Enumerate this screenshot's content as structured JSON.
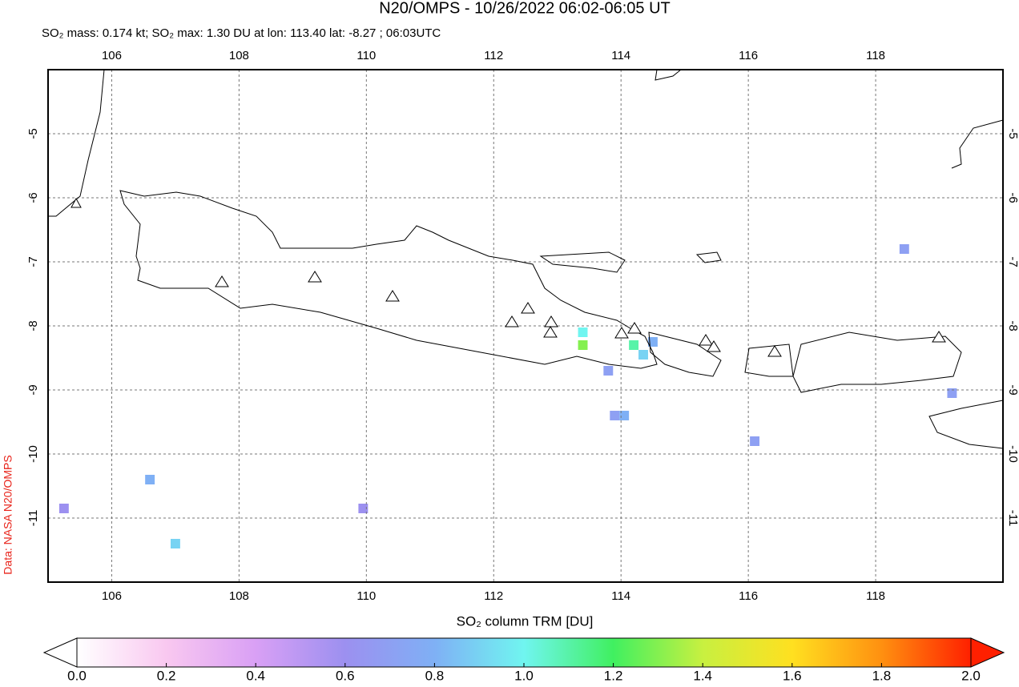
{
  "chart_data": {
    "type": "map",
    "title": "N20/OMPS - 10/26/2022 06:02-06:05 UT",
    "subtitle": "SO₂ mass: 0.174 kt; SO₂ max: 1.30 DU at lon: 113.40 lat: -8.27 ; 06:03UTC",
    "credit": "Data: NASA N20/OMPS",
    "xlim": [
      105,
      120
    ],
    "ylim": [
      -12,
      -4
    ],
    "xticks": [
      106,
      108,
      110,
      112,
      114,
      116,
      118
    ],
    "yticks": [
      -5,
      -6,
      -7,
      -8,
      -9,
      -10,
      -11
    ],
    "grid": true,
    "pixels": {
      "lon": [
        113.4,
        113.4,
        114.2,
        114.35,
        114.5,
        113.8,
        113.9,
        114.05,
        106.6,
        107.0,
        118.45,
        119.2,
        116.1,
        105.25,
        109.95
      ],
      "lat": [
        -8.3,
        -8.1,
        -8.3,
        -8.45,
        -8.25,
        -8.7,
        -9.4,
        -9.4,
        -10.4,
        -11.4,
        -6.8,
        -9.05,
        -9.8,
        -10.85,
        -10.85
      ],
      "values": [
        1.3,
        1.0,
        1.1,
        0.9,
        0.8,
        0.7,
        0.7,
        0.8,
        0.8,
        0.9,
        0.7,
        0.7,
        0.7,
        0.6,
        0.6
      ]
    },
    "colorbar": {
      "label": "SO₂ column TRM [DU]",
      "range": [
        0,
        2
      ],
      "colors": [
        "#ffffff",
        "#f9c8f0",
        "#d9a0f5",
        "#9c90f0",
        "#7fb0f5",
        "#70f5f0",
        "#40f060",
        "#c8f040",
        "#ffe020",
        "#ff9010",
        "#ff2000"
      ],
      "ticks": [
        {
          "value": 0,
          "label": "0.0"
        },
        {
          "value": 0.2,
          "label": "0.2"
        },
        {
          "value": 0.4,
          "label": "0.4"
        },
        {
          "value": 0.6,
          "label": "0.6"
        },
        {
          "value": 0.8,
          "label": "0.8"
        },
        {
          "value": 1,
          "label": "1.0"
        },
        {
          "value": 1.2,
          "label": "1.2"
        },
        {
          "value": 1.4,
          "label": "1.4"
        },
        {
          "value": 1.6,
          "label": "1.6"
        },
        {
          "value": 1.8,
          "label": "1.8"
        },
        {
          "value": 2,
          "label": "2.0"
        }
      ]
    }
  }
}
